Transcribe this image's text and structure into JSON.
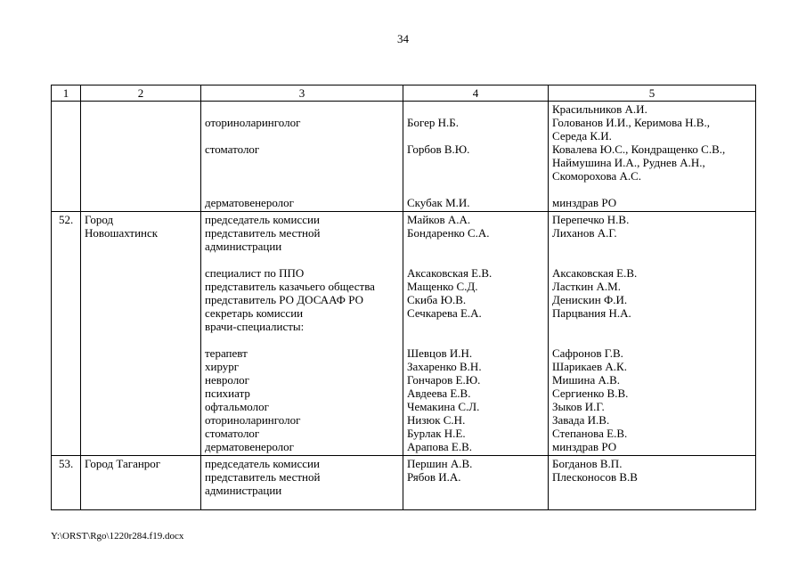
{
  "page": {
    "number": "34",
    "footer": "Y:\\ORST\\Rgo\\1220r284.f19.docx"
  },
  "table": {
    "columns": [
      "1",
      "2",
      "3",
      "4",
      "5"
    ],
    "rows": [
      {
        "num": "",
        "city": [],
        "lines": [
          [
            "",
            "",
            "Красильников А.И."
          ],
          [
            "оториноларинголог",
            "Богер Н.Б.",
            "Голованов И.И., Керимова Н.В.,"
          ],
          [
            "",
            "",
            "Середа К.И."
          ],
          [
            "стоматолог",
            "Горбов В.Ю.",
            "Ковалева Ю.С., Кондращенко С.В.,"
          ],
          [
            "",
            "",
            "Наймушина И.А., Руднев А.Н.,"
          ],
          [
            "",
            "",
            "Скоморохова А.С."
          ],
          [
            "",
            "",
            ""
          ],
          [
            "дерматовенеролог",
            "Скубак М.И.",
            "минздрав РО"
          ]
        ]
      },
      {
        "num": "52.",
        "city": [
          "Город",
          "Новошахтинск"
        ],
        "lines": [
          [
            "председатель комиссии",
            "Майков А.А.",
            "Перепечко Н.В."
          ],
          [
            "представитель местной",
            "Бондаренко С.А.",
            "Лиханов А.Г."
          ],
          [
            "администрации",
            "",
            ""
          ],
          [
            "",
            "",
            ""
          ],
          [
            "специалист по ППО",
            "Аксаковская Е.В.",
            "Аксаковская Е.В."
          ],
          [
            "представитель казачьего общества",
            "Мащенко С.Д.",
            "Ласткин А.М."
          ],
          [
            "представитель РО ДОСААФ РО",
            "Скиба Ю.В.",
            "Денискин Ф.И."
          ],
          [
            "секретарь комиссии",
            "Сечкарева Е.А.",
            "Парцвания Н.А."
          ],
          [
            "врачи-специалисты:",
            "",
            ""
          ],
          [
            "",
            "",
            ""
          ],
          [
            "терапевт",
            "Шевцов И.Н.",
            "Сафронов Г.В."
          ],
          [
            "хирург",
            "Захаренко В.Н.",
            "Шарикаев А.К."
          ],
          [
            "невролог",
            "Гончаров Е.Ю.",
            "Мишина А.В."
          ],
          [
            "психиатр",
            "Авдеева Е.В.",
            "Сергиенко В.В."
          ],
          [
            "офтальмолог",
            "Чемакина С.Л.",
            "Зыков И.Г."
          ],
          [
            "оториноларинголог",
            "Низюк С.Н.",
            "Завада И.В."
          ],
          [
            "стоматолог",
            "Бурлак Н.Е.",
            "Степанова Е.В."
          ],
          [
            "дерматовенеролог",
            "Арапова Е.В.",
            "минздрав РО"
          ]
        ]
      },
      {
        "num": "53.",
        "city": [
          "Город Таганрог"
        ],
        "lines": [
          [
            "председатель комиссии",
            "Першин А.В.",
            "Богданов В.П."
          ],
          [
            "представитель местной",
            "Рябов И.А.",
            "Плесконосов В.В"
          ],
          [
            "администрации",
            "",
            ""
          ]
        ]
      }
    ]
  }
}
